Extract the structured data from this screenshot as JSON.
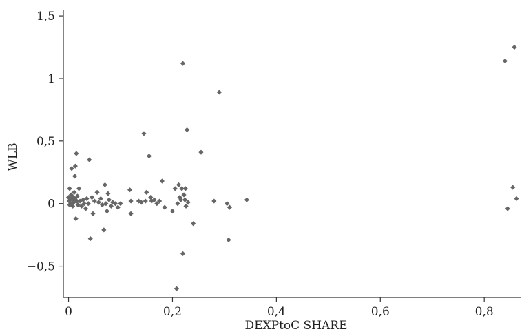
{
  "chart_data": {
    "type": "scatter",
    "xlabel": "DEXPtoC SHARE",
    "ylabel": "WLB",
    "xlim": [
      -0.01,
      0.87
    ],
    "ylim": [
      -0.75,
      1.55
    ],
    "xticks": [
      0,
      0.2,
      0.4,
      0.6,
      0.8
    ],
    "xtick_labels": [
      "0",
      "0,2",
      "0,4",
      "0,6",
      "0,8"
    ],
    "yticks": [
      -0.5,
      0,
      0.5,
      1,
      1.5
    ],
    "ytick_labels": [
      "−0,5",
      "0",
      "0,5",
      "1",
      "1,5"
    ],
    "grid": false,
    "marker_color": "#666666",
    "points": [
      [
        0.0,
        0.05
      ],
      [
        0.001,
        0.02
      ],
      [
        0.002,
        -0.01
      ],
      [
        0.002,
        0.12
      ],
      [
        0.003,
        0.04
      ],
      [
        0.004,
        0.0
      ],
      [
        0.005,
        0.07
      ],
      [
        0.006,
        0.28
      ],
      [
        0.007,
        0.03
      ],
      [
        0.008,
        -0.02
      ],
      [
        0.009,
        0.05
      ],
      [
        0.01,
        0.01
      ],
      [
        0.011,
        0.09
      ],
      [
        0.012,
        0.04
      ],
      [
        0.012,
        0.22
      ],
      [
        0.013,
        0.3
      ],
      [
        0.014,
        -0.12
      ],
      [
        0.015,
        0.4
      ],
      [
        0.016,
        0.02
      ],
      [
        0.017,
        0.06
      ],
      [
        0.018,
        -0.01
      ],
      [
        0.02,
        0.12
      ],
      [
        0.022,
        0.02
      ],
      [
        0.025,
        -0.02
      ],
      [
        0.028,
        0.03
      ],
      [
        0.03,
        0.0
      ],
      [
        0.033,
        -0.04
      ],
      [
        0.035,
        0.04
      ],
      [
        0.038,
        0.0
      ],
      [
        0.04,
        0.35
      ],
      [
        0.042,
        -0.28
      ],
      [
        0.045,
        0.05
      ],
      [
        0.047,
        -0.08
      ],
      [
        0.05,
        0.02
      ],
      [
        0.055,
        0.09
      ],
      [
        0.058,
        0.01
      ],
      [
        0.062,
        0.04
      ],
      [
        0.065,
        -0.01
      ],
      [
        0.068,
        -0.21
      ],
      [
        0.07,
        0.15
      ],
      [
        0.072,
        0.0
      ],
      [
        0.074,
        -0.06
      ],
      [
        0.076,
        0.08
      ],
      [
        0.078,
        0.03
      ],
      [
        0.082,
        -0.02
      ],
      [
        0.085,
        0.01
      ],
      [
        0.09,
        0.0
      ],
      [
        0.095,
        -0.03
      ],
      [
        0.1,
        0.0
      ],
      [
        0.118,
        0.11
      ],
      [
        0.12,
        0.02
      ],
      [
        0.12,
        -0.08
      ],
      [
        0.135,
        0.02
      ],
      [
        0.14,
        0.01
      ],
      [
        0.145,
        0.56
      ],
      [
        0.148,
        0.02
      ],
      [
        0.15,
        0.09
      ],
      [
        0.155,
        0.38
      ],
      [
        0.158,
        0.05
      ],
      [
        0.16,
        0.02
      ],
      [
        0.165,
        0.03
      ],
      [
        0.17,
        0.0
      ],
      [
        0.175,
        0.02
      ],
      [
        0.18,
        0.18
      ],
      [
        0.185,
        -0.03
      ],
      [
        0.2,
        -0.06
      ],
      [
        0.205,
        0.12
      ],
      [
        0.208,
        -0.68
      ],
      [
        0.21,
        0.0
      ],
      [
        0.212,
        0.15
      ],
      [
        0.214,
        0.05
      ],
      [
        0.216,
        0.03
      ],
      [
        0.218,
        0.12
      ],
      [
        0.22,
        1.12
      ],
      [
        0.22,
        -0.4
      ],
      [
        0.222,
        0.07
      ],
      [
        0.224,
        0.03
      ],
      [
        0.225,
        0.12
      ],
      [
        0.226,
        -0.02
      ],
      [
        0.228,
        0.59
      ],
      [
        0.23,
        0.01
      ],
      [
        0.24,
        -0.16
      ],
      [
        0.255,
        0.41
      ],
      [
        0.28,
        0.02
      ],
      [
        0.29,
        0.89
      ],
      [
        0.305,
        0.0
      ],
      [
        0.308,
        -0.29
      ],
      [
        0.31,
        -0.03
      ],
      [
        0.343,
        0.03
      ],
      [
        0.84,
        1.14
      ],
      [
        0.845,
        -0.04
      ],
      [
        0.855,
        0.13
      ],
      [
        0.858,
        1.25
      ],
      [
        0.862,
        0.04
      ]
    ]
  }
}
